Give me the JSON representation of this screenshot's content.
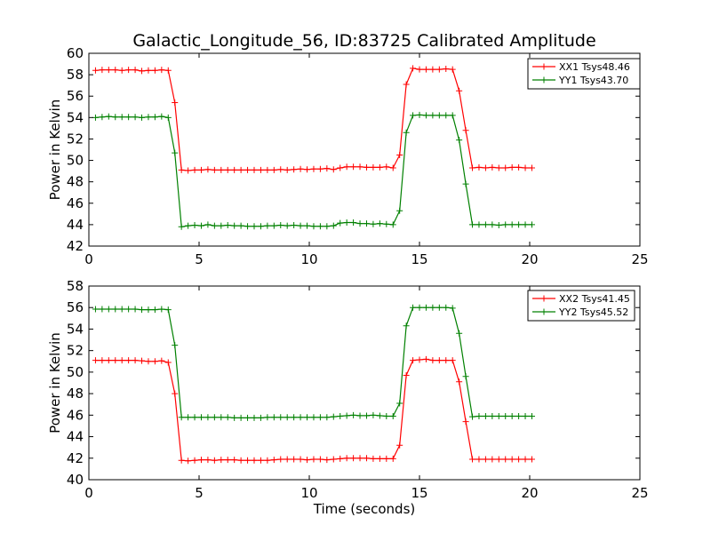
{
  "chart_data": [
    {
      "type": "line",
      "title": "Galactic_Longitude_56, ID:83725 Calibrated Amplitude",
      "xlabel": "",
      "ylabel": "Power in Kelvin",
      "xlim": [
        0,
        25
      ],
      "ylim": [
        42,
        60
      ],
      "xticks": [
        0,
        5,
        10,
        15,
        20,
        25
      ],
      "yticks": [
        42,
        44,
        46,
        48,
        50,
        52,
        54,
        56,
        58,
        60
      ],
      "grid": false,
      "legend": "top-right",
      "x": [
        0.3,
        0.6,
        0.9,
        1.2,
        1.5,
        1.8,
        2.1,
        2.4,
        2.7,
        3.0,
        3.3,
        3.6,
        3.9,
        4.2,
        4.5,
        4.8,
        5.1,
        5.4,
        5.7,
        6.0,
        6.3,
        6.6,
        6.9,
        7.2,
        7.5,
        7.8,
        8.1,
        8.4,
        8.7,
        9.0,
        9.3,
        9.6,
        9.9,
        10.2,
        10.5,
        10.8,
        11.1,
        11.4,
        11.7,
        12.0,
        12.3,
        12.6,
        12.9,
        13.2,
        13.5,
        13.8,
        14.1,
        14.4,
        14.7,
        15.0,
        15.3,
        15.6,
        15.9,
        16.2,
        16.5,
        16.8,
        17.1,
        17.4,
        17.7,
        18.0,
        18.3,
        18.6,
        18.9,
        19.2,
        19.5,
        19.8,
        20.1
      ],
      "series": [
        {
          "name": "XX1 Tsys48.46",
          "color": "#ff0000",
          "values": [
            58.4,
            58.45,
            58.45,
            58.45,
            58.4,
            58.45,
            58.45,
            58.35,
            58.4,
            58.4,
            58.45,
            58.4,
            55.4,
            49.1,
            49.05,
            49.1,
            49.1,
            49.15,
            49.1,
            49.1,
            49.1,
            49.1,
            49.1,
            49.1,
            49.1,
            49.1,
            49.1,
            49.1,
            49.15,
            49.1,
            49.15,
            49.2,
            49.15,
            49.2,
            49.2,
            49.25,
            49.15,
            49.3,
            49.4,
            49.4,
            49.4,
            49.35,
            49.35,
            49.35,
            49.4,
            49.3,
            50.5,
            57.1,
            58.6,
            58.5,
            58.5,
            58.5,
            58.5,
            58.55,
            58.5,
            56.5,
            52.8,
            49.3,
            49.35,
            49.3,
            49.35,
            49.3,
            49.3,
            49.35,
            49.35,
            49.3,
            49.3
          ]
        },
        {
          "name": "YY1 Tsys43.70",
          "color": "#008000",
          "values": [
            54.0,
            54.05,
            54.1,
            54.05,
            54.05,
            54.05,
            54.05,
            54.0,
            54.05,
            54.05,
            54.1,
            54.0,
            50.7,
            43.8,
            43.9,
            43.95,
            43.9,
            44.0,
            43.9,
            43.9,
            43.95,
            43.9,
            43.9,
            43.85,
            43.85,
            43.85,
            43.9,
            43.9,
            43.95,
            43.9,
            43.95,
            43.9,
            43.9,
            43.85,
            43.85,
            43.85,
            43.9,
            44.15,
            44.2,
            44.2,
            44.1,
            44.1,
            44.05,
            44.1,
            44.05,
            44.0,
            45.3,
            52.6,
            54.2,
            54.25,
            54.2,
            54.2,
            54.2,
            54.2,
            54.2,
            51.9,
            47.8,
            44.0,
            44.0,
            44.0,
            44.0,
            43.95,
            44.0,
            44.0,
            44.0,
            44.0,
            44.0
          ]
        }
      ]
    },
    {
      "type": "line",
      "title": "",
      "xlabel": "Time (seconds)",
      "ylabel": "Power in Kelvin",
      "xlim": [
        0,
        25
      ],
      "ylim": [
        40,
        58
      ],
      "xticks": [
        0,
        5,
        10,
        15,
        20,
        25
      ],
      "yticks": [
        40,
        42,
        44,
        46,
        48,
        50,
        52,
        54,
        56,
        58
      ],
      "grid": false,
      "legend": "top-right",
      "x": [
        0.3,
        0.6,
        0.9,
        1.2,
        1.5,
        1.8,
        2.1,
        2.4,
        2.7,
        3.0,
        3.3,
        3.6,
        3.9,
        4.2,
        4.5,
        4.8,
        5.1,
        5.4,
        5.7,
        6.0,
        6.3,
        6.6,
        6.9,
        7.2,
        7.5,
        7.8,
        8.1,
        8.4,
        8.7,
        9.0,
        9.3,
        9.6,
        9.9,
        10.2,
        10.5,
        10.8,
        11.1,
        11.4,
        11.7,
        12.0,
        12.3,
        12.6,
        12.9,
        13.2,
        13.5,
        13.8,
        14.1,
        14.4,
        14.7,
        15.0,
        15.3,
        15.6,
        15.9,
        16.2,
        16.5,
        16.8,
        17.1,
        17.4,
        17.7,
        18.0,
        18.3,
        18.6,
        18.9,
        19.2,
        19.5,
        19.8,
        20.1
      ],
      "series": [
        {
          "name": "XX2 Tsys41.45",
          "color": "#ff0000",
          "values": [
            51.1,
            51.1,
            51.1,
            51.1,
            51.1,
            51.1,
            51.1,
            51.05,
            51.0,
            51.0,
            51.05,
            50.9,
            48.0,
            41.8,
            41.75,
            41.8,
            41.85,
            41.85,
            41.8,
            41.85,
            41.85,
            41.85,
            41.8,
            41.8,
            41.8,
            41.8,
            41.8,
            41.85,
            41.9,
            41.9,
            41.9,
            41.9,
            41.85,
            41.9,
            41.9,
            41.85,
            41.9,
            41.95,
            42.0,
            42.0,
            42.0,
            42.0,
            41.95,
            41.95,
            41.95,
            41.95,
            43.2,
            49.7,
            51.1,
            51.15,
            51.2,
            51.1,
            51.1,
            51.1,
            51.1,
            49.1,
            45.4,
            41.9,
            41.9,
            41.9,
            41.9,
            41.9,
            41.9,
            41.9,
            41.9,
            41.9,
            41.9
          ]
        },
        {
          "name": "YY2 Tsys45.52",
          "color": "#008000",
          "values": [
            55.85,
            55.85,
            55.85,
            55.85,
            55.85,
            55.85,
            55.85,
            55.8,
            55.8,
            55.8,
            55.85,
            55.8,
            52.5,
            45.8,
            45.8,
            45.8,
            45.8,
            45.8,
            45.8,
            45.8,
            45.8,
            45.75,
            45.75,
            45.75,
            45.75,
            45.75,
            45.8,
            45.8,
            45.8,
            45.8,
            45.8,
            45.8,
            45.8,
            45.8,
            45.8,
            45.8,
            45.85,
            45.9,
            45.95,
            46.0,
            45.95,
            45.95,
            46.0,
            45.95,
            45.9,
            45.9,
            47.1,
            54.3,
            56.0,
            56.0,
            56.0,
            56.0,
            56.0,
            56.0,
            55.95,
            53.6,
            49.6,
            45.85,
            45.9,
            45.9,
            45.9,
            45.9,
            45.9,
            45.9,
            45.9,
            45.9,
            45.9
          ]
        }
      ]
    }
  ]
}
